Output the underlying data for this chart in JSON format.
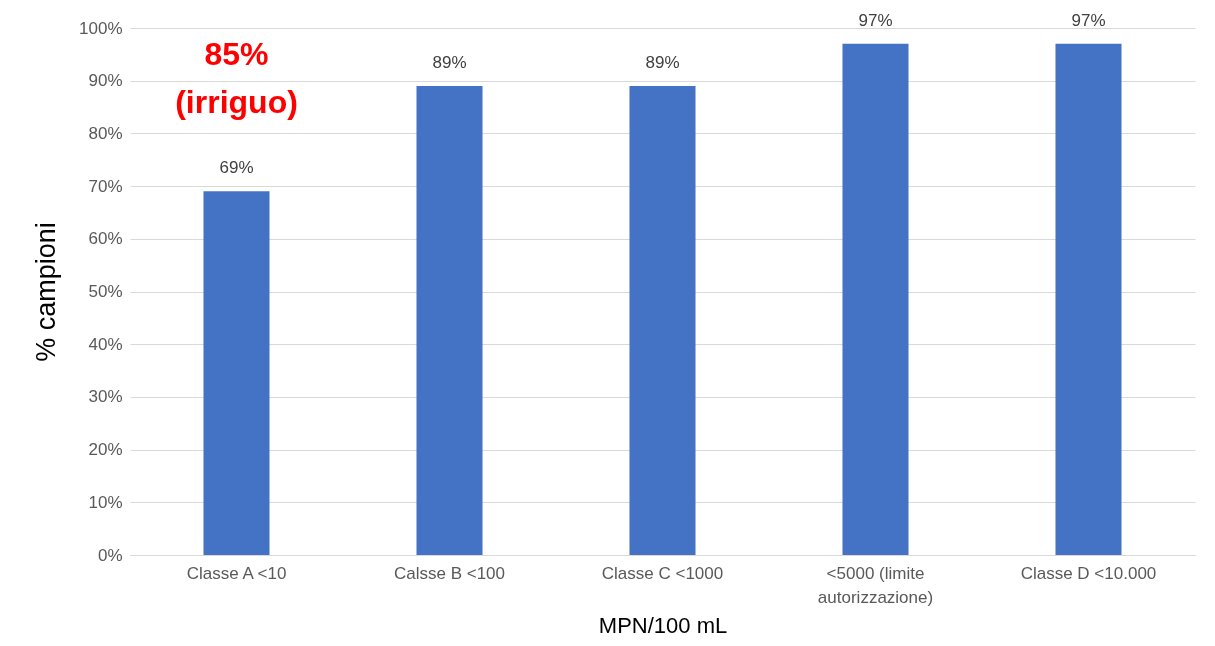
{
  "chart_data": {
    "type": "bar",
    "xlabel": "MPN/100 mL",
    "ylabel": "% campioni",
    "categories": [
      "Classe A <10",
      "Calsse B <100",
      "Classe C <1000",
      "<5000 (limite autorizzazione)",
      "Classe D <10.000"
    ],
    "values": [
      69,
      89,
      89,
      97,
      97
    ],
    "value_labels": [
      "69%",
      "89%",
      "89%",
      "97%",
      "97%"
    ],
    "color": "#4472c4",
    "ylim": [
      0,
      100
    ],
    "yticks": [
      {
        "value": 0,
        "label": "0%"
      },
      {
        "value": 10,
        "label": "10%"
      },
      {
        "value": 20,
        "label": "20%"
      },
      {
        "value": 30,
        "label": "30%"
      },
      {
        "value": 40,
        "label": "40%"
      },
      {
        "value": 50,
        "label": "50%"
      },
      {
        "value": 60,
        "label": "60%"
      },
      {
        "value": 70,
        "label": "70%"
      },
      {
        "value": 80,
        "label": "80%"
      },
      {
        "value": 90,
        "label": "90%"
      },
      {
        "value": 100,
        "label": "100%"
      }
    ],
    "grid": "y",
    "annotations": [
      "85% (irriguo)"
    ]
  }
}
